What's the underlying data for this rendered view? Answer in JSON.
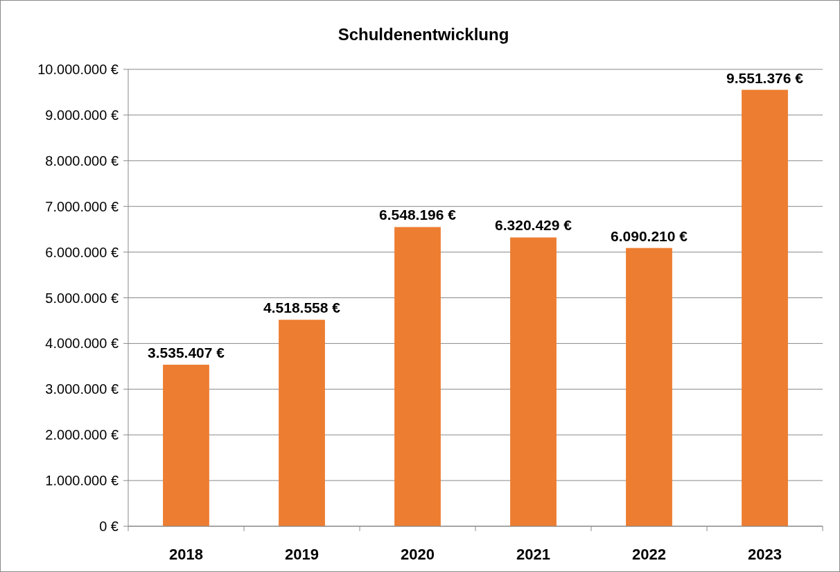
{
  "chart_data": {
    "type": "bar",
    "title": "Schuldenentwicklung",
    "categories": [
      "2018",
      "2019",
      "2020",
      "2021",
      "2022",
      "2023"
    ],
    "values": [
      3535407,
      4518558,
      6548196,
      6320429,
      6090210,
      9551376
    ],
    "value_labels": [
      "3.535.407 €",
      "4.518.558 €",
      "6.548.196 €",
      "6.320.429 €",
      "6.090.210 €",
      "9.551.376 €"
    ],
    "color": "#ed7d31",
    "ylim": [
      0,
      10000000
    ],
    "yticks": [
      {
        "value": 0,
        "label": "0 €"
      },
      {
        "value": 1000000,
        "label": "1.000.000 €"
      },
      {
        "value": 2000000,
        "label": "2.000.000 €"
      },
      {
        "value": 3000000,
        "label": "3.000.000 €"
      },
      {
        "value": 4000000,
        "label": "4.000.000 €"
      },
      {
        "value": 5000000,
        "label": "5.000.000 €"
      },
      {
        "value": 6000000,
        "label": "6.000.000 €"
      },
      {
        "value": 7000000,
        "label": "7.000.000 €"
      },
      {
        "value": 8000000,
        "label": "8.000.000 €"
      },
      {
        "value": 9000000,
        "label": "9.000.000 €"
      },
      {
        "value": 10000000,
        "label": "10.000.000 €"
      }
    ],
    "grid": "y"
  }
}
